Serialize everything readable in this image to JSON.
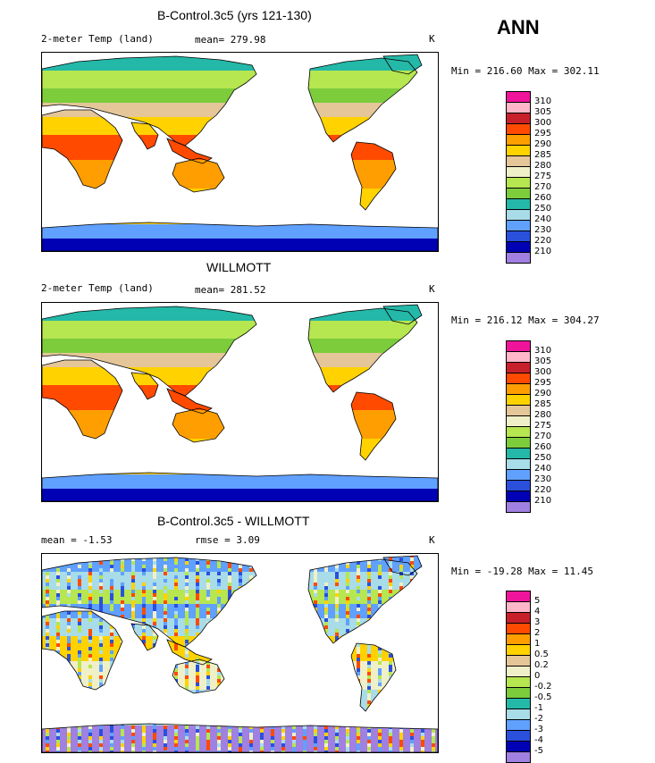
{
  "season": "ANN",
  "panels": [
    {
      "title": "B-Control.3c5 (yrs 121-130)",
      "left_label": "2-meter Temp (land)",
      "middle_label": "mean= 279.98",
      "units": "K",
      "minmax": "Min = 216.60 Max = 302.11",
      "levels": [
        "310",
        "305",
        "300",
        "295",
        "290",
        "285",
        "280",
        "275",
        "270",
        "260",
        "250",
        "240",
        "230",
        "220",
        "210"
      ],
      "colors": [
        "#f0149b",
        "#ffb6c8",
        "#c8202a",
        "#ff4a00",
        "#ff9e00",
        "#ffd200",
        "#e5c698",
        "#f0f0c8",
        "#b6e650",
        "#7ccc3c",
        "#24b8a8",
        "#a8dce8",
        "#60a0ff",
        "#2a50dc",
        "#0000b4",
        "#a080e0"
      ]
    },
    {
      "title": "WILLMOTT",
      "left_label": "2-meter Temp (land)",
      "middle_label": "mean= 281.52",
      "units": "K",
      "minmax": "Min = 216.12 Max = 304.27",
      "levels": [
        "310",
        "305",
        "300",
        "295",
        "290",
        "285",
        "280",
        "275",
        "270",
        "260",
        "250",
        "240",
        "230",
        "220",
        "210"
      ],
      "colors": [
        "#f0149b",
        "#ffb6c8",
        "#c8202a",
        "#ff4a00",
        "#ff9e00",
        "#ffd200",
        "#e5c698",
        "#f0f0c8",
        "#b6e650",
        "#7ccc3c",
        "#24b8a8",
        "#a8dce8",
        "#60a0ff",
        "#2a50dc",
        "#0000b4",
        "#a080e0"
      ]
    },
    {
      "title": "B-Control.3c5 - WILLMOTT",
      "left_label": "mean =   -1.53",
      "middle_label": "rmse =    3.09",
      "units": "K",
      "minmax": "Min = -19.28 Max =  11.45",
      "levels": [
        "5",
        "4",
        "3",
        "2",
        "1",
        "0.5",
        "0.2",
        "0",
        "-0.2",
        "-0.5",
        "-1",
        "-2",
        "-3",
        "-4",
        "-5"
      ],
      "colors": [
        "#f0149b",
        "#ffb6c8",
        "#c8202a",
        "#ff4a00",
        "#ff9e00",
        "#ffd200",
        "#e5c698",
        "#f0f0c8",
        "#b6e650",
        "#7ccc3c",
        "#24b8a8",
        "#a8dce8",
        "#60a0ff",
        "#2a50dc",
        "#0000b4",
        "#a080e0"
      ]
    }
  ]
}
